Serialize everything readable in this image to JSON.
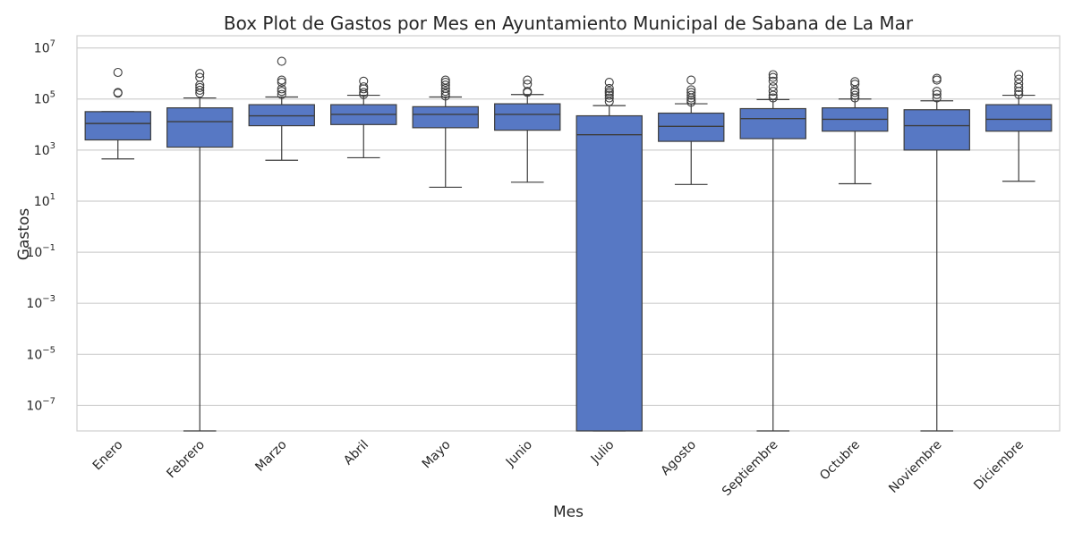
{
  "chart_data": {
    "type": "box",
    "title": "Box Plot de Gastos por Mes en Ayuntamiento Municipal de Sabana de La Mar",
    "xlabel": "Mes",
    "ylabel": "Gastos",
    "yscale": "log",
    "ylim": [
      1e-08,
      30000000.0
    ],
    "grid": "horizontal",
    "colors": {
      "box_fill": "#5778c4",
      "box_line": "#3d3d3d",
      "grid": "#cfcfcf",
      "frame": "#cfcfcf"
    },
    "y_ticks": [
      {
        "value": 10000000.0,
        "base": "10",
        "exp": "7"
      },
      {
        "value": 100000.0,
        "base": "10",
        "exp": "5"
      },
      {
        "value": 1000.0,
        "base": "10",
        "exp": "3"
      },
      {
        "value": 10.0,
        "base": "10",
        "exp": "1"
      },
      {
        "value": 0.1,
        "base": "10",
        "exp": "−1"
      },
      {
        "value": 0.001,
        "base": "10",
        "exp": "−3"
      },
      {
        "value": 1e-05,
        "base": "10",
        "exp": "−5"
      },
      {
        "value": 1e-07,
        "base": "10",
        "exp": "−7"
      }
    ],
    "categories": [
      "Enero",
      "Febrero",
      "Marzo",
      "Abril",
      "Mayo",
      "Junio",
      "Julio",
      "Agosto",
      "Septiembre",
      "Octubre",
      "Noviembre",
      "Diciembre"
    ],
    "boxes": [
      {
        "whisker_low": 450,
        "q1": 2500,
        "median": 11000,
        "q3": 32000,
        "whisker_high": 32000,
        "outliers": [
          1100000,
          180000,
          170000
        ]
      },
      {
        "whisker_low": 1e-08,
        "q1": 1300,
        "median": 13000,
        "q3": 45000,
        "whisker_high": 110000,
        "outliers": [
          170000,
          220000,
          280000,
          350000,
          700000,
          1000000
        ]
      },
      {
        "whisker_low": 400,
        "q1": 9000,
        "median": 22000,
        "q3": 60000,
        "whisker_high": 120000,
        "outliers": [
          150000,
          200000,
          250000,
          450000,
          550000,
          3000000
        ]
      },
      {
        "whisker_low": 500,
        "q1": 10000,
        "median": 25000,
        "q3": 60000,
        "whisker_high": 140000,
        "outliers": [
          150000,
          180000,
          250000,
          300000,
          500000
        ]
      },
      {
        "whisker_low": 35,
        "q1": 7500,
        "median": 25000,
        "q3": 50000,
        "whisker_high": 120000,
        "outliers": [
          130000,
          160000,
          200000,
          260000,
          350000,
          450000,
          550000
        ]
      },
      {
        "whisker_low": 55,
        "q1": 6000,
        "median": 25000,
        "q3": 65000,
        "whisker_high": 150000,
        "outliers": [
          180000,
          200000,
          380000,
          550000
        ]
      },
      {
        "whisker_low": 1e-08,
        "q1": 1e-08,
        "median": 4000,
        "q3": 22000,
        "whisker_high": 55000,
        "outliers": [
          80000,
          110000,
          140000,
          170000,
          200000,
          260000,
          450000
        ]
      },
      {
        "whisker_low": 45,
        "q1": 2200,
        "median": 8500,
        "q3": 28000,
        "whisker_high": 65000,
        "outliers": [
          75000,
          90000,
          110000,
          140000,
          180000,
          230000,
          550000
        ]
      },
      {
        "whisker_low": 1e-08,
        "q1": 2800,
        "median": 17000,
        "q3": 42000,
        "whisker_high": 95000,
        "outliers": [
          110000,
          140000,
          200000,
          300000,
          500000,
          700000,
          900000
        ]
      },
      {
        "whisker_low": 48,
        "q1": 5500,
        "median": 16000,
        "q3": 45000,
        "whisker_high": 100000,
        "outliers": [
          110000,
          140000,
          180000,
          220000,
          380000,
          480000
        ]
      },
      {
        "whisker_low": 1e-08,
        "q1": 1000,
        "median": 9000,
        "q3": 38000,
        "whisker_high": 85000,
        "outliers": [
          110000,
          150000,
          200000,
          550000,
          650000
        ]
      },
      {
        "whisker_low": 60,
        "q1": 5500,
        "median": 16000,
        "q3": 60000,
        "whisker_high": 140000,
        "outliers": [
          150000,
          200000,
          280000,
          400000,
          600000,
          900000
        ]
      }
    ]
  }
}
